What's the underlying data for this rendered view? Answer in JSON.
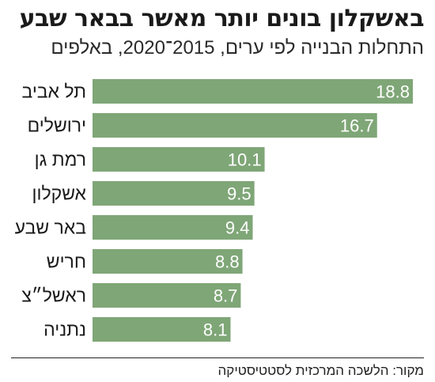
{
  "title": "באשקלון בונים יותר מאשר בבאר שבע",
  "subtitle": "התחלות הבנייה לפי ערים, 2015־2020, באלפים",
  "source": "מקור: הלשכה המרכזית לסטטיסטיקה",
  "colors": {
    "bar": "#7fa677",
    "value_text": "#ffffff",
    "label_text": "#1a1a1a"
  },
  "chart_data": {
    "type": "bar",
    "orientation": "horizontal",
    "title": "באשקלון בונים יותר מאשר בבאר שבע",
    "subtitle": "התחלות הבנייה לפי ערים, 2015־2020, באלפים",
    "categories": [
      "תל אביב",
      "ירושלים",
      "רמת גן",
      "אשקלון",
      "באר שבע",
      "חריש",
      "ראשל״צ",
      "נתניה"
    ],
    "values": [
      18.8,
      16.7,
      10.1,
      9.5,
      9.4,
      8.8,
      8.7,
      8.1
    ],
    "xlim": [
      0,
      18.8
    ],
    "grid": false,
    "legend": "none"
  }
}
